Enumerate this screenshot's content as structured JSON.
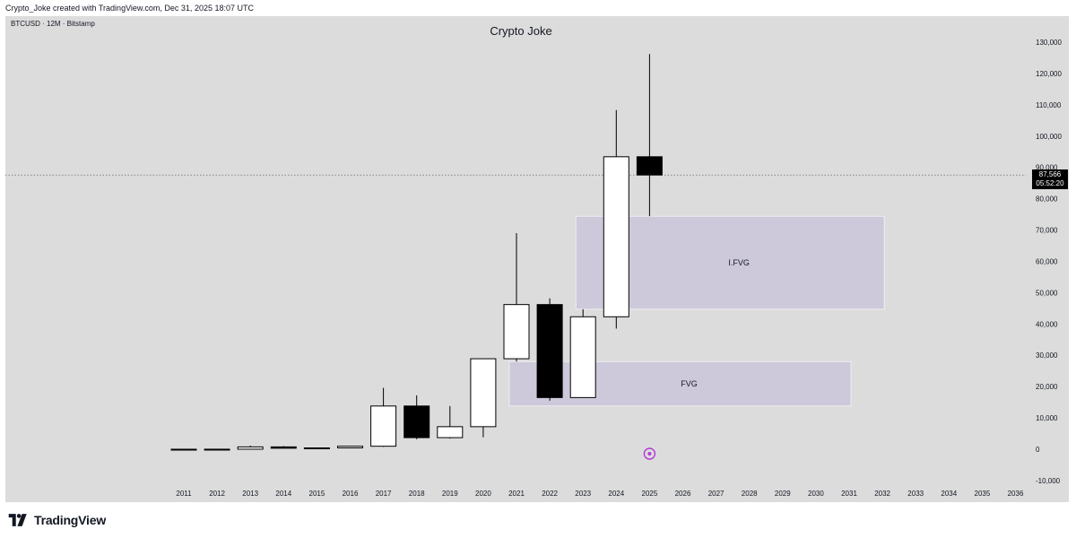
{
  "header": {
    "attribution": "Crypto_Joke created with TradingView.com, Dec 31, 2025 18:07 UTC"
  },
  "chart": {
    "symbol_line": "BTCUSD · 12M · Bitstamp",
    "title": "Crypto Joke"
  },
  "current_price": {
    "price": "87,566",
    "countdown": "05:52:20"
  },
  "footer": {
    "brand": "TradingView"
  },
  "colors": {
    "background": "#dcdcdc",
    "up_body": "#ffffff",
    "down_body": "#000000",
    "zone_fill": "#cdc9da",
    "badge": "#000000"
  },
  "chart_data": {
    "type": "candlestick",
    "title": "Crypto Joke",
    "interval": "12M",
    "x_ticks": [
      "2011",
      "2012",
      "2013",
      "2014",
      "2015",
      "2016",
      "2017",
      "2018",
      "2019",
      "2020",
      "2021",
      "2022",
      "2023",
      "2024",
      "2025",
      "2026",
      "2027",
      "2028",
      "2029",
      "2030",
      "2031",
      "2032",
      "2033",
      "2034",
      "2035",
      "2036"
    ],
    "y_ticks": [
      130000,
      120000,
      110000,
      100000,
      90000,
      80000,
      70000,
      60000,
      50000,
      40000,
      30000,
      20000,
      10000,
      0,
      -10000
    ],
    "y_tick_labels": [
      "130,000",
      "120,000",
      "110,000",
      "100,000",
      "90,000",
      "80,000",
      "70,000",
      "60,000",
      "50,000",
      "40,000",
      "30,000",
      "20,000",
      "10,000",
      "0",
      "-10,000"
    ],
    "ylim": [
      -12000,
      133000
    ],
    "ohlc": [
      {
        "year": "2011",
        "open": 0,
        "high": 30,
        "low": 0,
        "close": 5
      },
      {
        "year": "2012",
        "open": 5,
        "high": 15,
        "low": 4,
        "close": 13
      },
      {
        "year": "2013",
        "open": 13,
        "high": 1150,
        "low": 13,
        "close": 750
      },
      {
        "year": "2014",
        "open": 750,
        "high": 1000,
        "low": 300,
        "close": 320
      },
      {
        "year": "2015",
        "open": 320,
        "high": 500,
        "low": 150,
        "close": 430
      },
      {
        "year": "2016",
        "open": 430,
        "high": 980,
        "low": 350,
        "close": 960
      },
      {
        "year": "2017",
        "open": 960,
        "high": 19600,
        "low": 750,
        "close": 13800
      },
      {
        "year": "2018",
        "open": 13800,
        "high": 17200,
        "low": 3200,
        "close": 3700
      },
      {
        "year": "2019",
        "open": 3700,
        "high": 13800,
        "low": 3400,
        "close": 7200
      },
      {
        "year": "2020",
        "open": 7200,
        "high": 29000,
        "low": 3800,
        "close": 28900
      },
      {
        "year": "2021",
        "open": 28900,
        "high": 69000,
        "low": 28000,
        "close": 46200
      },
      {
        "year": "2022",
        "open": 46200,
        "high": 48200,
        "low": 15500,
        "close": 16500
      },
      {
        "year": "2023",
        "open": 16500,
        "high": 44700,
        "low": 16500,
        "close": 42300
      },
      {
        "year": "2024",
        "open": 42300,
        "high": 108300,
        "low": 38500,
        "close": 93400
      },
      {
        "year": "2025",
        "open": 93400,
        "high": 126200,
        "low": 74400,
        "close": 87566
      }
    ],
    "zones": [
      {
        "label": "I.FVG",
        "x_start": "2023",
        "x_end": "2032",
        "top": 74400,
        "bottom": 44700
      },
      {
        "label": "FVG",
        "x_start": "2021",
        "x_end": "2031",
        "top": 28000,
        "bottom": 13800
      }
    ],
    "current_price_line": 87566,
    "grid": false
  }
}
